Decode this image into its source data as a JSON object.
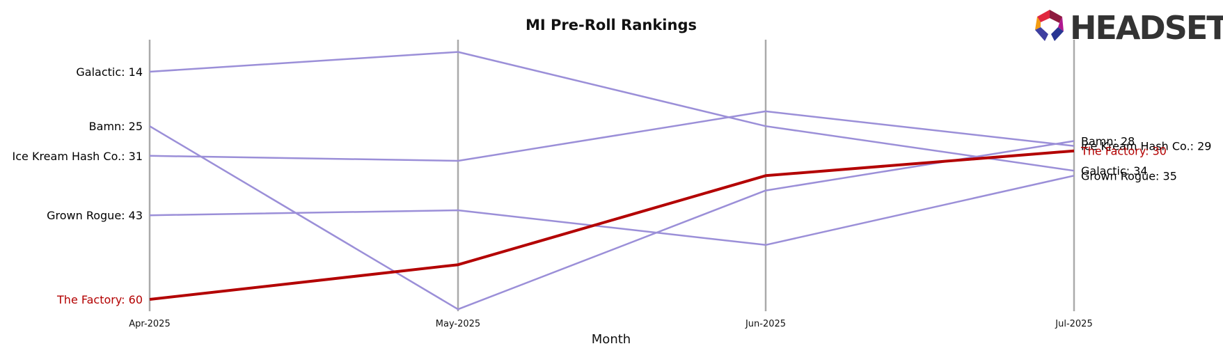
{
  "chart_data": {
    "type": "line",
    "title": "MI Pre-Roll Rankings",
    "xlabel": "Month",
    "ylabel": "",
    "categories": [
      "Apr-2025",
      "May-2025",
      "Jun-2025",
      "Jul-2025"
    ],
    "y_inverted": true,
    "ylim": [
      12,
      63
    ],
    "series": [
      {
        "name": "Galactic",
        "values": [
          14,
          10,
          25,
          34
        ],
        "color": "#9b8fd8",
        "highlight": false
      },
      {
        "name": "Bamn",
        "values": [
          25,
          62,
          38,
          28
        ],
        "color": "#9b8fd8",
        "highlight": false
      },
      {
        "name": "Ice Kream Hash Co.",
        "values": [
          31,
          32,
          22,
          29
        ],
        "color": "#9b8fd8",
        "highlight": false
      },
      {
        "name": "Grown Rogue",
        "values": [
          43,
          42,
          49,
          35
        ],
        "color": "#9b8fd8",
        "highlight": false
      },
      {
        "name": "The Factory",
        "values": [
          60,
          53,
          35,
          30
        ],
        "color": "#b30000",
        "highlight": true
      }
    ]
  },
  "logo": {
    "text": "HEADSET",
    "colors": [
      "#e8472b",
      "#c2185b",
      "#7b1fa2",
      "#283593",
      "#f39c12"
    ]
  }
}
